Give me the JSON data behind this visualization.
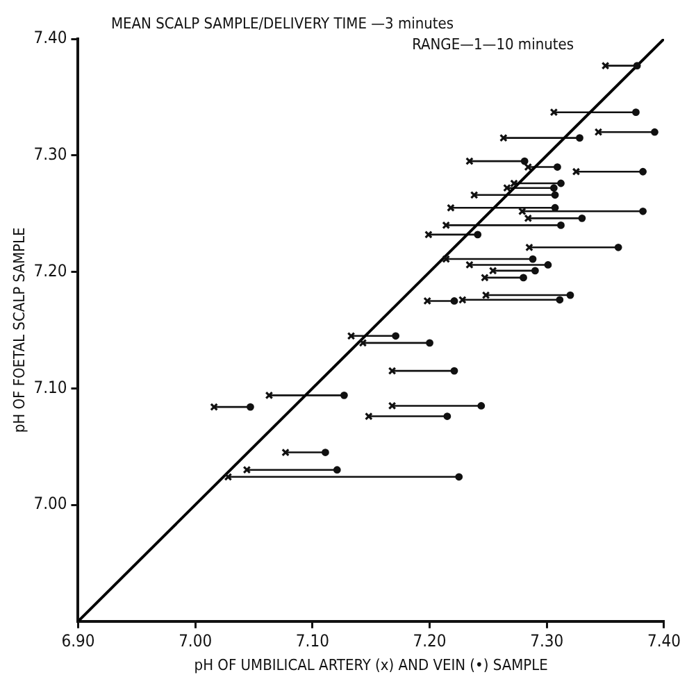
{
  "chart_data": {
    "type": "scatter",
    "xlabel": "pH OF UMBILICAL ARTERY (x) AND VEIN (•) SAMPLE",
    "ylabel": "pH OF FOETAL SCALP SAMPLE",
    "annotations": [
      "MEAN SCALP SAMPLE/DELIVERY TIME —3 minutes",
      "RANGE—1—10 minutes"
    ],
    "xlim": [
      6.9,
      7.4
    ],
    "ylim": [
      6.9,
      7.4
    ],
    "xticks": [
      {
        "value": 6.9,
        "label": "6.90"
      },
      {
        "value": 7.0,
        "label": "7.00"
      },
      {
        "value": 7.1,
        "label": "7.10"
      },
      {
        "value": 7.2,
        "label": "7.20"
      },
      {
        "value": 7.3,
        "label": "7.30"
      },
      {
        "value": 7.4,
        "label": "7.40"
      }
    ],
    "yticks": [
      {
        "value": 7.0,
        "label": "7.00"
      },
      {
        "value": 7.1,
        "label": "7.10"
      },
      {
        "value": 7.2,
        "label": "7.20"
      },
      {
        "value": 7.3,
        "label": "7.30"
      },
      {
        "value": 7.4,
        "label": "7.40"
      }
    ],
    "grid": false,
    "legend": false,
    "series": [
      {
        "marker": "cross",
        "color": "#111111",
        "xerrors": [
          [
            7.35,
            7.377
          ],
          [
            7.306,
            7.376
          ],
          [
            7.344,
            7.392
          ],
          [
            7.263,
            7.328
          ],
          [
            7.234,
            7.281
          ],
          [
            7.284,
            7.309
          ],
          [
            7.325,
            7.382
          ],
          [
            7.272,
            7.312
          ],
          [
            7.266,
            7.306
          ],
          [
            7.238,
            7.307
          ],
          [
            7.218,
            7.307
          ],
          [
            7.279,
            7.382
          ],
          [
            7.284,
            7.33
          ],
          [
            7.214,
            7.312
          ],
          [
            7.199,
            7.241
          ],
          [
            7.285,
            7.361
          ],
          [
            7.214,
            7.288
          ],
          [
            7.234,
            7.301
          ],
          [
            7.254,
            7.29
          ],
          [
            7.247,
            7.28
          ],
          [
            7.248,
            7.32
          ],
          [
            7.228,
            7.311
          ],
          [
            7.198,
            7.221
          ],
          [
            7.133,
            7.171
          ],
          [
            7.143,
            7.2
          ],
          [
            7.168,
            7.221
          ],
          [
            7.063,
            7.127
          ],
          [
            7.168,
            7.244
          ],
          [
            7.016,
            7.047
          ],
          [
            7.148,
            7.215
          ],
          [
            7.077,
            7.111
          ],
          [
            7.044,
            7.121
          ],
          [
            7.028,
            7.225
          ]
        ],
        "x": [
          7.35,
          7.306,
          7.344,
          7.263,
          7.234,
          7.284,
          7.325,
          7.272,
          7.266,
          7.238,
          7.218,
          7.279,
          7.284,
          7.214,
          7.199,
          7.285,
          7.214,
          7.234,
          7.254,
          7.247,
          7.248,
          7.228,
          7.198,
          7.133,
          7.143,
          7.168,
          7.063,
          7.168,
          7.016,
          7.148,
          7.077,
          7.044,
          7.028
        ],
        "values": [
          7.377,
          7.337,
          7.32,
          7.315,
          7.295,
          7.29,
          7.286,
          7.276,
          7.272,
          7.266,
          7.255,
          7.252,
          7.246,
          7.24,
          7.232,
          7.221,
          7.211,
          7.206,
          7.201,
          7.195,
          7.18,
          7.176,
          7.175,
          7.145,
          7.139,
          7.115,
          7.094,
          7.085,
          7.084,
          7.076,
          7.045,
          7.03,
          7.024
        ]
      },
      {
        "marker": "circle",
        "color": "#111111",
        "x": [
          7.377,
          7.376,
          7.392,
          7.328,
          7.281,
          7.309,
          7.382,
          7.312,
          7.306,
          7.307,
          7.307,
          7.382,
          7.33,
          7.312,
          7.241,
          7.361,
          7.288,
          7.301,
          7.29,
          7.28,
          7.32,
          7.311,
          7.221,
          7.171,
          7.2,
          7.221,
          7.127,
          7.244,
          7.047,
          7.215,
          7.111,
          7.121,
          7.225
        ],
        "values": [
          7.377,
          7.337,
          7.32,
          7.315,
          7.295,
          7.29,
          7.286,
          7.276,
          7.272,
          7.266,
          7.255,
          7.252,
          7.246,
          7.24,
          7.232,
          7.221,
          7.211,
          7.206,
          7.201,
          7.195,
          7.18,
          7.176,
          7.175,
          7.145,
          7.139,
          7.115,
          7.094,
          7.085,
          7.084,
          7.076,
          7.045,
          7.03,
          7.024
        ]
      },
      {
        "type": "line",
        "marker": "none",
        "color": "#000000",
        "x": [
          6.9,
          7.4
        ],
        "values": [
          6.9,
          7.4
        ]
      }
    ]
  }
}
